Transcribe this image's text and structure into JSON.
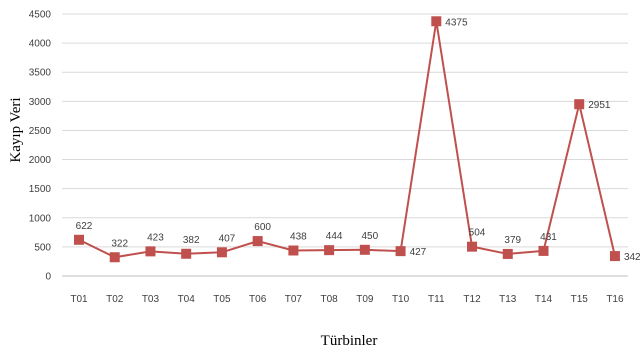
{
  "chart_data": {
    "type": "line",
    "categories": [
      "T01",
      "T02",
      "T03",
      "T04",
      "T05",
      "T06",
      "T07",
      "T08",
      "T09",
      "T10",
      "T11",
      "T12",
      "T13",
      "T14",
      "T15",
      "T16"
    ],
    "series": [
      {
        "values": [
          622,
          322,
          423,
          382,
          407,
          600,
          438,
          444,
          450,
          427,
          4375,
          504,
          379,
          431,
          2951,
          342
        ]
      }
    ],
    "data_labels": [
      "622",
      "322",
      "423",
      "382",
      "407",
      "600",
      "438",
      "444",
      "450",
      "427",
      "4375",
      "504",
      "379",
      "431",
      "2951",
      "342"
    ],
    "y_ticks": [
      "0",
      "500",
      "1000",
      "1500",
      "2000",
      "2500",
      "3000",
      "3500",
      "4000",
      "4500"
    ],
    "ylim": [
      0,
      4500
    ],
    "xlabel": "Türbinler",
    "ylabel": "Kayıp Veri",
    "grid": "horizontal",
    "line_color": "#c0504d",
    "marker_color": "#c0504d",
    "legend": "none"
  }
}
